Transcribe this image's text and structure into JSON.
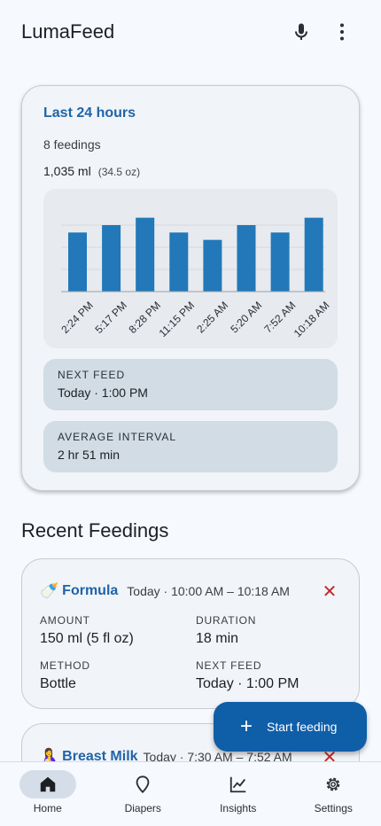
{
  "appbar": {
    "title": "LumaFeed",
    "mic_icon": "microphone-icon",
    "menu_icon": "more-vertical-icon"
  },
  "summary": {
    "title": "Last 24 hours",
    "feedings_count": "8 feedings",
    "total_ml": "1,035 ml",
    "total_oz": "(34.5 oz)",
    "next_feed_label": "NEXT FEED",
    "next_feed_value": "Today · 1:00 PM",
    "avg_interval_label": "AVERAGE INTERVAL",
    "avg_interval_value": "2 hr 51 min"
  },
  "chart_data": {
    "type": "bar",
    "categories": [
      "2:24 PM",
      "5:17 PM",
      "8:28 PM",
      "11:15 PM",
      "2:25 AM",
      "5:20 AM",
      "7:52 AM",
      "10:18 AM"
    ],
    "values": [
      120,
      135,
      150,
      120,
      105,
      135,
      120,
      150
    ],
    "ylim": [
      0,
      180
    ],
    "grid": true,
    "bar_color": "#2278b8"
  },
  "recent": {
    "title": "Recent Feedings",
    "items": [
      {
        "emoji": "🍼",
        "type": "Formula",
        "time": "Today · 10:00 AM – 10:18 AM",
        "amount_label": "AMOUNT",
        "amount": "150 ml (5 fl oz)",
        "duration_label": "DURATION",
        "duration": "18 min",
        "method_label": "METHOD",
        "method": "Bottle",
        "next_label": "NEXT FEED",
        "next": "Today · 1:00 PM",
        "delete": "✕"
      },
      {
        "emoji": "🤱",
        "type": "Breast Milk",
        "time": "Today · 7:30 AM – 7:52 AM",
        "delete": "✕"
      }
    ]
  },
  "fab": {
    "plus": "+",
    "label": "Start feeding"
  },
  "nav": {
    "items": [
      {
        "label": "Home",
        "icon": "home-icon"
      },
      {
        "label": "Diapers",
        "icon": "pin-icon"
      },
      {
        "label": "Insights",
        "icon": "line-chart-icon"
      },
      {
        "label": "Settings",
        "icon": "gear-icon"
      }
    ]
  },
  "colors": {
    "accent": "#1f64a8",
    "fab": "#0f5ea8",
    "danger": "#c62828"
  }
}
